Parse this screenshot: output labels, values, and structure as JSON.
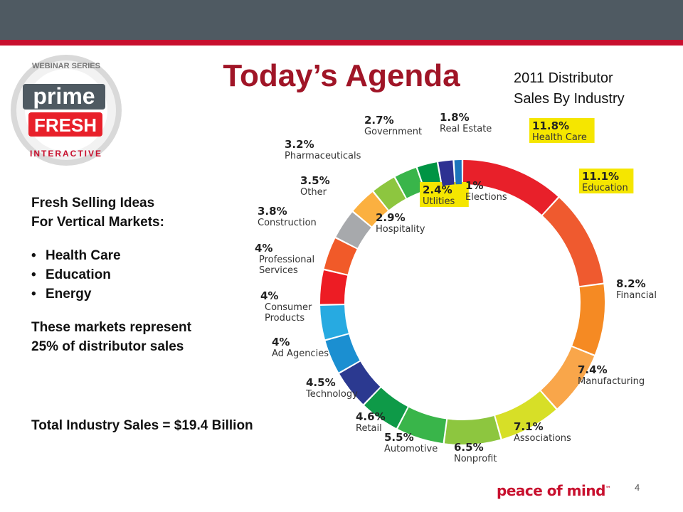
{
  "slide": {
    "title": "Today’s Agenda",
    "page_number": "4",
    "brand": "peace of mind",
    "brand_tm": "™"
  },
  "logo": {
    "top_text": "WEBINAR SERIES",
    "main_text": "prime",
    "sub_text": "FRESH",
    "bottom_text": "INTERACTIVE"
  },
  "left_panel": {
    "heading_line1": "Fresh Selling Ideas",
    "heading_line2": "For Vertical Markets:",
    "bullets": [
      "Health Care",
      "Education",
      "Energy"
    ],
    "note_line1": "These markets represent",
    "note_line2": "25% of distributor sales",
    "total": "Total Industry Sales = $19.4 Billion"
  },
  "chart_data": {
    "type": "pie",
    "style": "donut",
    "title_line1": "2011 Distributor",
    "title_line2": "Sales By Industry",
    "slices": [
      {
        "label": "Health Care",
        "value_label": "11.8%",
        "value": 11.8,
        "color": "#e8202a",
        "highlight": true,
        "label_lines": [
          "Health Care"
        ]
      },
      {
        "label": "Education",
        "value_label": "11.1%",
        "value": 11.1,
        "color": "#ef5a2f",
        "highlight": true,
        "label_lines": [
          "Education"
        ]
      },
      {
        "label": "Financial",
        "value_label": "8.2%",
        "value": 8.2,
        "color": "#f58a23",
        "highlight": false,
        "label_lines": [
          "Financial"
        ]
      },
      {
        "label": "Manufacturing",
        "value_label": "7.4%",
        "value": 7.4,
        "color": "#f9a64a",
        "highlight": false,
        "label_lines": [
          "Manufacturing"
        ]
      },
      {
        "label": "Associations",
        "value_label": "7.1%",
        "value": 7.1,
        "color": "#d7df27",
        "highlight": false,
        "label_lines": [
          "Associations"
        ]
      },
      {
        "label": "Nonprofit",
        "value_label": "6.5%",
        "value": 6.5,
        "color": "#8dc63f",
        "highlight": false,
        "label_lines": [
          "Nonprofit"
        ]
      },
      {
        "label": "Automotive",
        "value_label": "5.5%",
        "value": 5.5,
        "color": "#39b54a",
        "highlight": false,
        "label_lines": [
          "Automotive"
        ]
      },
      {
        "label": "Retail",
        "value_label": "4.6%",
        "value": 4.6,
        "color": "#0e9a48",
        "highlight": false,
        "label_lines": [
          "Retail"
        ]
      },
      {
        "label": "Technology",
        "value_label": "4.5%",
        "value": 4.5,
        "color": "#2b3990",
        "highlight": false,
        "label_lines": [
          "Technology"
        ]
      },
      {
        "label": "Ad Agencies",
        "value_label": "4%",
        "value": 4.0,
        "color": "#1b8fd1",
        "highlight": false,
        "label_lines": [
          "Ad Agencies"
        ]
      },
      {
        "label": "Consumer Products",
        "value_label": "4%",
        "value": 4.0,
        "color": "#27aae1",
        "highlight": false,
        "label_lines": [
          "Consumer",
          "Products"
        ]
      },
      {
        "label": "Professional Services",
        "value_label": "4%",
        "value": 4.0,
        "color": "#ed1c24",
        "highlight": false,
        "label_lines": [
          "Professional",
          "Services"
        ]
      },
      {
        "label": "Construction",
        "value_label": "3.8%",
        "value": 3.8,
        "color": "#f15a29",
        "highlight": false,
        "label_lines": [
          "Construction"
        ]
      },
      {
        "label": "Other",
        "value_label": "3.5%",
        "value": 3.5,
        "color": "#a7a9ac",
        "highlight": false,
        "label_lines": [
          "Other"
        ]
      },
      {
        "label": "Pharmaceuticals",
        "value_label": "3.2%",
        "value": 3.2,
        "color": "#fbb040",
        "highlight": false,
        "label_lines": [
          "Pharmaceuticals"
        ]
      },
      {
        "label": "Hospitality",
        "value_label": "2.9%",
        "value": 2.9,
        "color": "#8dc63f",
        "highlight": false,
        "label_lines": [
          "Hospitality"
        ]
      },
      {
        "label": "Government",
        "value_label": "2.7%",
        "value": 2.7,
        "color": "#39b54a",
        "highlight": false,
        "label_lines": [
          "Government"
        ]
      },
      {
        "label": "Utilities",
        "value_label": "2.4%",
        "value": 2.4,
        "color": "#009444",
        "highlight": true,
        "label_lines": [
          "Utlities"
        ]
      },
      {
        "label": "Real Estate",
        "value_label": "1.8%",
        "value": 1.8,
        "color": "#2e3192",
        "highlight": false,
        "label_lines": [
          "Real Estate"
        ]
      },
      {
        "label": "Elections",
        "value_label": "1%",
        "value": 1.0,
        "color": "#1c75bc",
        "highlight": false,
        "label_lines": [
          "Elections"
        ]
      }
    ]
  }
}
